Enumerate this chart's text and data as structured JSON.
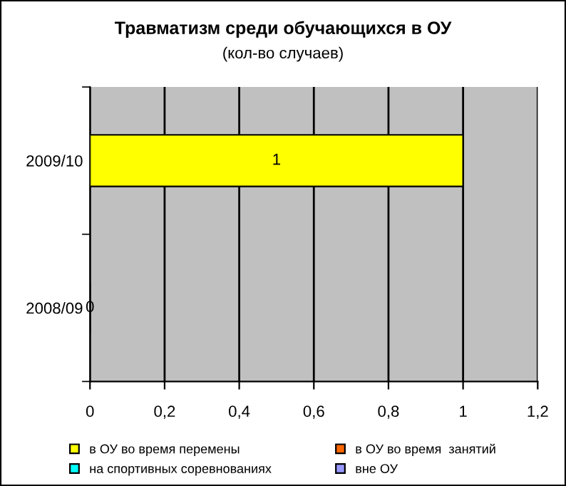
{
  "chart_data": {
    "type": "bar",
    "orientation": "horizontal",
    "stacked": true,
    "title": "Травматизм среди обучающихся в ОУ",
    "subtitle": "(кол-во случаев)",
    "categories": [
      "2009/10",
      "2008/09"
    ],
    "series": [
      {
        "name": "в ОУ во время перемены",
        "color": "#ffff00",
        "values": [
          1,
          0
        ],
        "value_labels": [
          "1",
          "0"
        ]
      },
      {
        "name": "в ОУ во время  занятий",
        "color": "#ff6600",
        "values": [
          null,
          null
        ]
      },
      {
        "name": "на спортивных соревнованиях",
        "color": "#00ffff",
        "values": [
          null,
          null
        ]
      },
      {
        "name": "вне ОУ",
        "color": "#9999ff",
        "values": [
          null,
          null
        ]
      }
    ],
    "xlim": [
      0,
      1.2
    ],
    "xticks": [
      0,
      {
        "value": 0.2,
        "label": "0,2"
      },
      {
        "value": 0.4,
        "label": "0,4"
      },
      {
        "value": 0.6,
        "label": "0,6"
      },
      {
        "value": 0.8,
        "label": "0,8"
      },
      1,
      {
        "value": 1.2,
        "label": "1,2"
      }
    ],
    "grid": "x",
    "legend": "bottom"
  }
}
